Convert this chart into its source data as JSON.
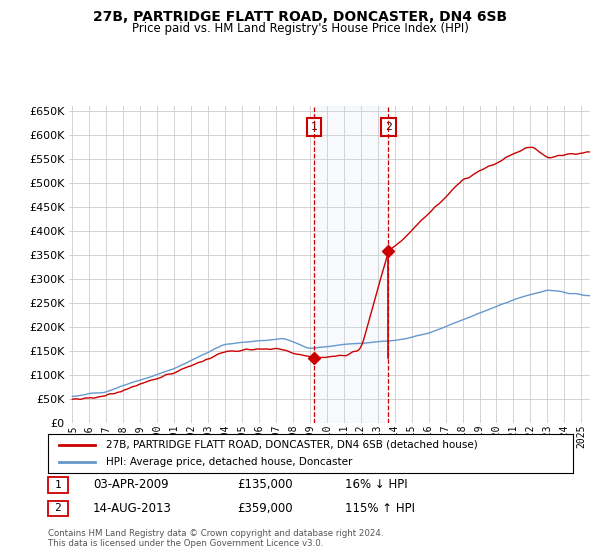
{
  "title": "27B, PARTRIDGE FLATT ROAD, DONCASTER, DN4 6SB",
  "subtitle": "Price paid vs. HM Land Registry's House Price Index (HPI)",
  "legend_line1": "27B, PARTRIDGE FLATT ROAD, DONCASTER, DN4 6SB (detached house)",
  "legend_line2": "HPI: Average price, detached house, Doncaster",
  "footnote1": "Contains HM Land Registry data © Crown copyright and database right 2024.",
  "footnote2": "This data is licensed under the Open Government Licence v3.0.",
  "transaction1_label": "1",
  "transaction1_date": "03-APR-2009",
  "transaction1_price": "£135,000",
  "transaction1_hpi": "16% ↓ HPI",
  "transaction2_label": "2",
  "transaction2_date": "14-AUG-2013",
  "transaction2_price": "£359,000",
  "transaction2_hpi": "115% ↑ HPI",
  "hpi_color": "#6699cc",
  "price_color": "#cc0000",
  "background_color": "#ffffff",
  "grid_color": "#cccccc",
  "ylim": [
    0,
    660000
  ],
  "yticks": [
    0,
    50000,
    100000,
    150000,
    200000,
    250000,
    300000,
    350000,
    400000,
    450000,
    500000,
    550000,
    600000,
    650000
  ],
  "transaction1_x": 2009.25,
  "transaction1_y": 135000,
  "transaction2_x": 2013.62,
  "transaction2_y": 359000,
  "xlim_left": 1994.8,
  "xlim_right": 2025.5
}
